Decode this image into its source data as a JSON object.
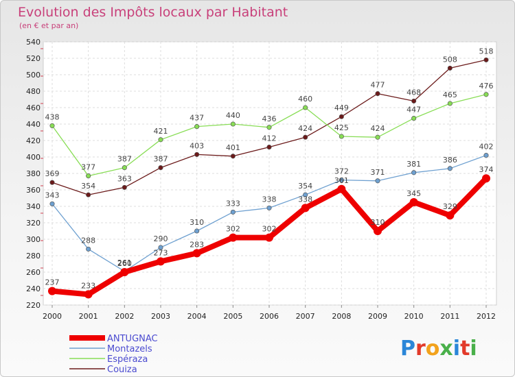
{
  "chart_data": {
    "type": "line",
    "title": "Evolution des Impôts locaux par Habitant",
    "subtitle": "(en € et par an)",
    "xlabel": "",
    "ylabel": "",
    "x": [
      "2000",
      "2001",
      "2002",
      "2003",
      "2004",
      "2005",
      "2006",
      "2007",
      "2008",
      "2009",
      "2010",
      "2011",
      "2012"
    ],
    "ylim": [
      220,
      540
    ],
    "yticks": [
      220,
      240,
      260,
      280,
      300,
      320,
      340,
      360,
      380,
      400,
      420,
      440,
      460,
      480,
      500,
      520,
      540
    ],
    "grid": true,
    "legend_position": "bottom-left",
    "series": [
      {
        "name": "ANTUGNAC",
        "color": "#ee0000",
        "values": [
          237,
          233,
          260,
          273,
          283,
          302,
          302,
          338,
          361,
          310,
          345,
          329,
          374
        ]
      },
      {
        "name": "Montazels",
        "color": "#6ea0d0",
        "values": [
          343,
          288,
          261,
          290,
          310,
          333,
          338,
          354,
          372,
          371,
          381,
          386,
          402
        ]
      },
      {
        "name": "Espéraza",
        "color": "#88dd55",
        "values": [
          438,
          377,
          387,
          421,
          437,
          440,
          436,
          460,
          425,
          424,
          447,
          465,
          476
        ]
      },
      {
        "name": "Couiza",
        "color": "#6b1a1a",
        "values": [
          369,
          354,
          363,
          387,
          403,
          401,
          412,
          424,
          449,
          477,
          468,
          508,
          518
        ]
      }
    ]
  },
  "logo": {
    "text": "Proxiti"
  }
}
